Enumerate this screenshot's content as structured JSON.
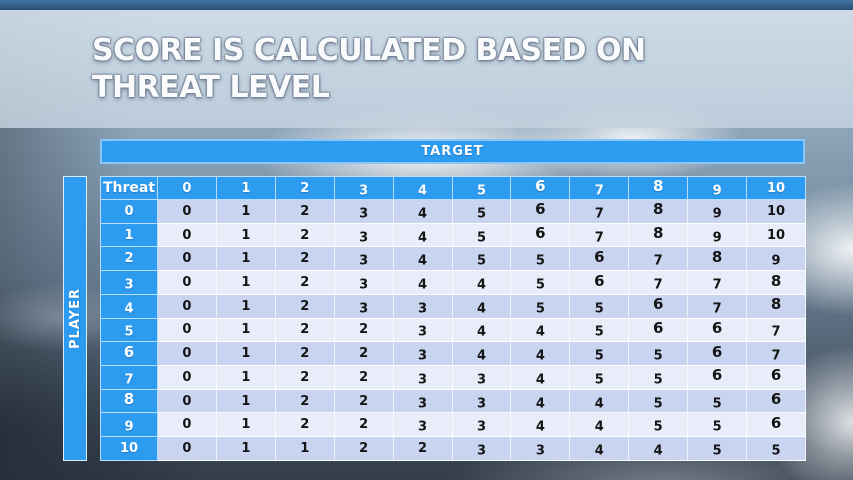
{
  "slide": {
    "title_lines": [
      "SCORE IS CALCULATED BASED ON",
      "THREAT LEVEL"
    ]
  },
  "matrix": {
    "target_label": "TARGET",
    "player_label": "PLAYER",
    "corner_label": "Threat",
    "column_headers": [
      "0",
      "1",
      "2",
      "3",
      "4",
      "5",
      "6",
      "7",
      "8",
      "9",
      "10"
    ],
    "row_headers": [
      "0",
      "1",
      "2",
      "3",
      "4",
      "5",
      "6",
      "7",
      "8",
      "9",
      "10"
    ],
    "rows": [
      [
        0,
        1,
        2,
        3,
        4,
        5,
        6,
        7,
        8,
        9,
        10
      ],
      [
        0,
        1,
        2,
        3,
        4,
        5,
        6,
        7,
        8,
        9,
        10
      ],
      [
        0,
        1,
        2,
        3,
        4,
        5,
        5,
        6,
        7,
        8,
        9
      ],
      [
        0,
        1,
        2,
        3,
        4,
        4,
        5,
        6,
        7,
        7,
        8
      ],
      [
        0,
        1,
        2,
        3,
        3,
        4,
        5,
        5,
        6,
        7,
        8
      ],
      [
        0,
        1,
        2,
        2,
        3,
        4,
        4,
        5,
        6,
        6,
        7
      ],
      [
        0,
        1,
        2,
        2,
        3,
        4,
        4,
        5,
        5,
        6,
        7
      ],
      [
        0,
        1,
        2,
        2,
        3,
        3,
        4,
        5,
        5,
        6,
        6
      ],
      [
        0,
        1,
        2,
        2,
        3,
        3,
        4,
        4,
        5,
        5,
        6
      ],
      [
        0,
        1,
        2,
        2,
        3,
        3,
        4,
        4,
        5,
        5,
        6
      ],
      [
        0,
        1,
        1,
        2,
        2,
        3,
        3,
        4,
        4,
        5,
        5
      ]
    ]
  },
  "colors": {
    "accent_blue": "#2D9BF0",
    "target_border": "#8AC6F8",
    "row_even": "#C8D4F0",
    "row_odd": "#E8EDF9",
    "header_text": "#FFFFFF",
    "body_text": "#141414",
    "top_strip": "#2E5878"
  }
}
